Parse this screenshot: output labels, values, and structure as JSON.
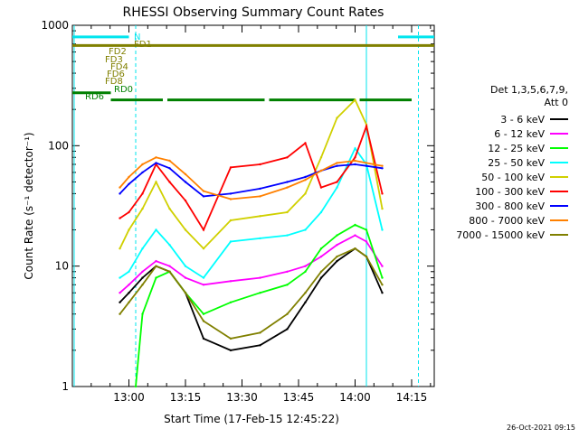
{
  "chart_data": {
    "type": "line",
    "title": "RHESSI Observing Summary Count Rates",
    "xlabel": "Start Time (17-Feb-15 12:45:22)",
    "ylabel": "Count Rate (s⁻¹ detector⁻¹)",
    "yscale": "log",
    "ylim": [
      1,
      1000
    ],
    "xlim_minutes": [
      12.75,
      14.35
    ],
    "x_unit": "hours",
    "x_ticks": [
      {
        "label": "13:00",
        "x": 13.0
      },
      {
        "label": "13:15",
        "x": 13.25
      },
      {
        "label": "13:30",
        "x": 13.5
      },
      {
        "label": "13:45",
        "x": 13.75
      },
      {
        "label": "14:00",
        "x": 14.0
      },
      {
        "label": "14:15",
        "x": 14.25
      }
    ],
    "y_ticks": [
      {
        "label": "1",
        "y": 1
      },
      {
        "label": "10",
        "y": 10
      },
      {
        "label": "100",
        "y": 100
      },
      {
        "label": "1000",
        "y": 1000
      }
    ],
    "legend_title": [
      "Det 1,3,5,6,7,9,",
      "Att 0"
    ],
    "legend_position": "right",
    "timestamp": "26-Oct-2021 09:15",
    "flag_labels": [
      "N",
      "FD1",
      "FD2",
      "FD3",
      "FD4",
      "FD6",
      "FD8",
      "RD0",
      "RD6"
    ],
    "flags": [
      {
        "name": "N",
        "color": "#00e5ee",
        "level": 800,
        "segments": [
          [
            12.75,
            13.0
          ],
          [
            14.19,
            14.35
          ]
        ]
      },
      {
        "name": "FD1",
        "color": "#808000",
        "level": 680,
        "segments": [
          [
            12.75,
            14.35
          ]
        ]
      },
      {
        "name": "RD0",
        "color": "#008000",
        "level": 275,
        "segments": [
          [
            12.75,
            12.92
          ]
        ]
      },
      {
        "name": "RD6",
        "color": "#008000",
        "level": 240,
        "segments": [
          [
            12.92,
            13.15
          ],
          [
            13.17,
            13.6
          ],
          [
            13.62,
            14.0
          ],
          [
            14.02,
            14.25
          ]
        ]
      }
    ],
    "vlines": [
      {
        "x": 13.03,
        "color": "#00e5ee",
        "style": "dashed"
      },
      {
        "x": 14.05,
        "color": "#00e5ee",
        "style": "solid"
      },
      {
        "x": 14.28,
        "color": "#00e5ee",
        "style": "dashed"
      }
    ],
    "series": [
      {
        "name": "3 - 6 keV",
        "color": "#000000",
        "x": [
          12.96,
          13.0,
          13.06,
          13.12,
          13.18,
          13.25,
          13.33,
          13.45,
          13.58,
          13.7,
          13.78,
          13.85,
          13.92,
          14.0,
          14.05,
          14.12
        ],
        "y": [
          5,
          6,
          8,
          10,
          9,
          6,
          2.5,
          2,
          2.2,
          3,
          5,
          8,
          11,
          14,
          12,
          6
        ]
      },
      {
        "name": "6 - 12 keV",
        "color": "#ff00ff",
        "x": [
          12.96,
          13.0,
          13.06,
          13.12,
          13.18,
          13.25,
          13.33,
          13.45,
          13.58,
          13.7,
          13.78,
          13.85,
          13.92,
          14.0,
          14.05,
          14.12
        ],
        "y": [
          6,
          7,
          9,
          11,
          10,
          8,
          7,
          7.5,
          8,
          9,
          10,
          12,
          15,
          18,
          16,
          10
        ]
      },
      {
        "name": "12 - 25 keV",
        "color": "#00ff00",
        "x": [
          13.03,
          13.06,
          13.12,
          13.18,
          13.25,
          13.33,
          13.45,
          13.58,
          13.7,
          13.78,
          13.85,
          13.92,
          14.0,
          14.05,
          14.12
        ],
        "y": [
          1,
          4,
          8,
          9,
          6,
          4,
          5,
          6,
          7,
          9,
          14,
          18,
          22,
          20,
          8
        ]
      },
      {
        "name": "25 - 50 keV",
        "color": "#00ffff",
        "x": [
          12.96,
          13.0,
          13.06,
          13.12,
          13.18,
          13.25,
          13.33,
          13.45,
          13.58,
          13.7,
          13.78,
          13.85,
          13.92,
          14.0,
          14.05,
          14.12
        ],
        "y": [
          8,
          9,
          14,
          20,
          15,
          10,
          8,
          16,
          17,
          18,
          20,
          28,
          45,
          95,
          70,
          20
        ]
      },
      {
        "name": "50 - 100 keV",
        "color": "#d0d000",
        "x": [
          12.96,
          13.0,
          13.06,
          13.12,
          13.18,
          13.25,
          13.33,
          13.45,
          13.58,
          13.7,
          13.78,
          13.85,
          13.92,
          14.0,
          14.05,
          14.12
        ],
        "y": [
          14,
          20,
          30,
          50,
          30,
          20,
          14,
          24,
          26,
          28,
          40,
          80,
          170,
          240,
          150,
          30
        ]
      },
      {
        "name": "100 - 300 keV",
        "color": "#ff0000",
        "x": [
          12.96,
          13.0,
          13.06,
          13.12,
          13.18,
          13.25,
          13.33,
          13.45,
          13.58,
          13.7,
          13.78,
          13.85,
          13.92,
          14.0,
          14.05,
          14.12
        ],
        "y": [
          25,
          28,
          40,
          70,
          50,
          35,
          20,
          66,
          70,
          80,
          105,
          45,
          50,
          80,
          145,
          40
        ]
      },
      {
        "name": "300 - 800 keV",
        "color": "#0000ff",
        "x": [
          12.96,
          13.0,
          13.06,
          13.12,
          13.18,
          13.25,
          13.33,
          13.45,
          13.58,
          13.7,
          13.78,
          13.85,
          13.92,
          14.0,
          14.05,
          14.12
        ],
        "y": [
          40,
          48,
          60,
          72,
          65,
          50,
          38,
          40,
          44,
          50,
          55,
          62,
          68,
          70,
          68,
          65
        ]
      },
      {
        "name": "800 - 7000 keV",
        "color": "#ff8000",
        "x": [
          12.96,
          13.0,
          13.06,
          13.12,
          13.18,
          13.25,
          13.33,
          13.45,
          13.58,
          13.7,
          13.78,
          13.85,
          13.92,
          14.0,
          14.05,
          14.12
        ],
        "y": [
          45,
          55,
          70,
          80,
          75,
          58,
          42,
          36,
          38,
          45,
          52,
          62,
          72,
          75,
          72,
          68
        ]
      },
      {
        "name": "7000 - 15000 keV",
        "color": "#808000",
        "x": [
          12.96,
          13.0,
          13.06,
          13.12,
          13.18,
          13.25,
          13.33,
          13.45,
          13.58,
          13.7,
          13.78,
          13.85,
          13.92,
          14.0,
          14.05,
          14.12
        ],
        "y": [
          4,
          5,
          7,
          10,
          9,
          6,
          3.5,
          2.5,
          2.8,
          4,
          6,
          9,
          12,
          14,
          12,
          7
        ]
      }
    ]
  }
}
